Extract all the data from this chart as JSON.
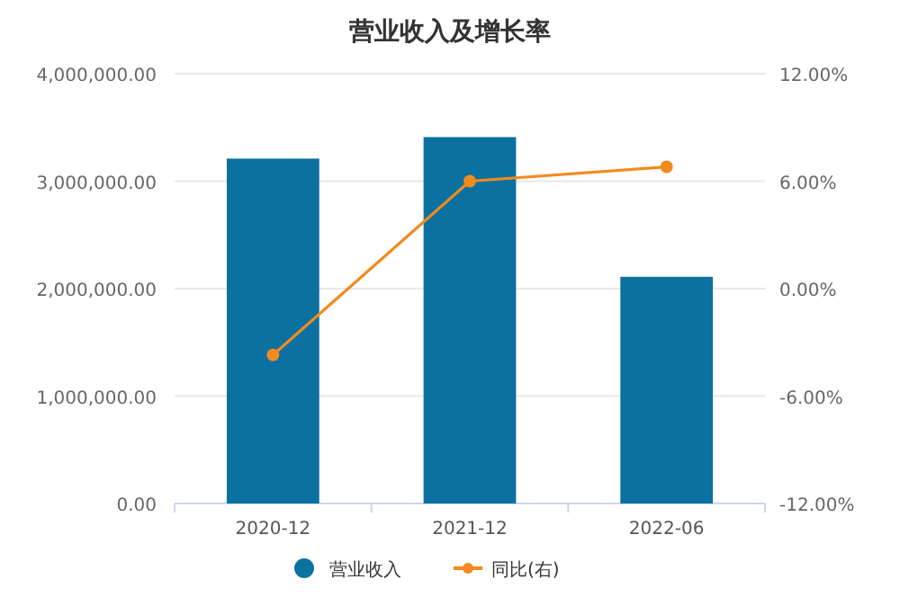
{
  "chart_data": {
    "type": "bar",
    "title": "营业收入及增长率",
    "categories": [
      "2020-12",
      "2021-12",
      "2022-06"
    ],
    "series": [
      {
        "name": "营业收入",
        "color": "#0b71a0",
        "values": [
          3210000,
          3410000,
          2110000
        ]
      },
      {
        "name": "同比(右)",
        "type": "line",
        "axis": "y2",
        "color": "#f28a1e",
        "values": [
          -3.7,
          6.0,
          6.8
        ]
      }
    ],
    "ylim": [
      0,
      4000000
    ],
    "yticks": [
      {
        "value": 0,
        "label": "0.00"
      },
      {
        "value": 1000000,
        "label": "1,000,000.00"
      },
      {
        "value": 2000000,
        "label": "2,000,000.00"
      },
      {
        "value": 3000000,
        "label": "3,000,000.00"
      },
      {
        "value": 4000000,
        "label": "4,000,000.00"
      }
    ],
    "y2lim": [
      -12,
      12
    ],
    "y2ticks": [
      {
        "value": -12,
        "label": "-12.00%"
      },
      {
        "value": -6,
        "label": "-6.00%"
      },
      {
        "value": 0,
        "label": "0.00%"
      },
      {
        "value": 6,
        "label": "6.00%"
      },
      {
        "value": 12,
        "label": "12.00%"
      }
    ],
    "grid": "y",
    "legend": "bottom",
    "marker": "circle"
  }
}
